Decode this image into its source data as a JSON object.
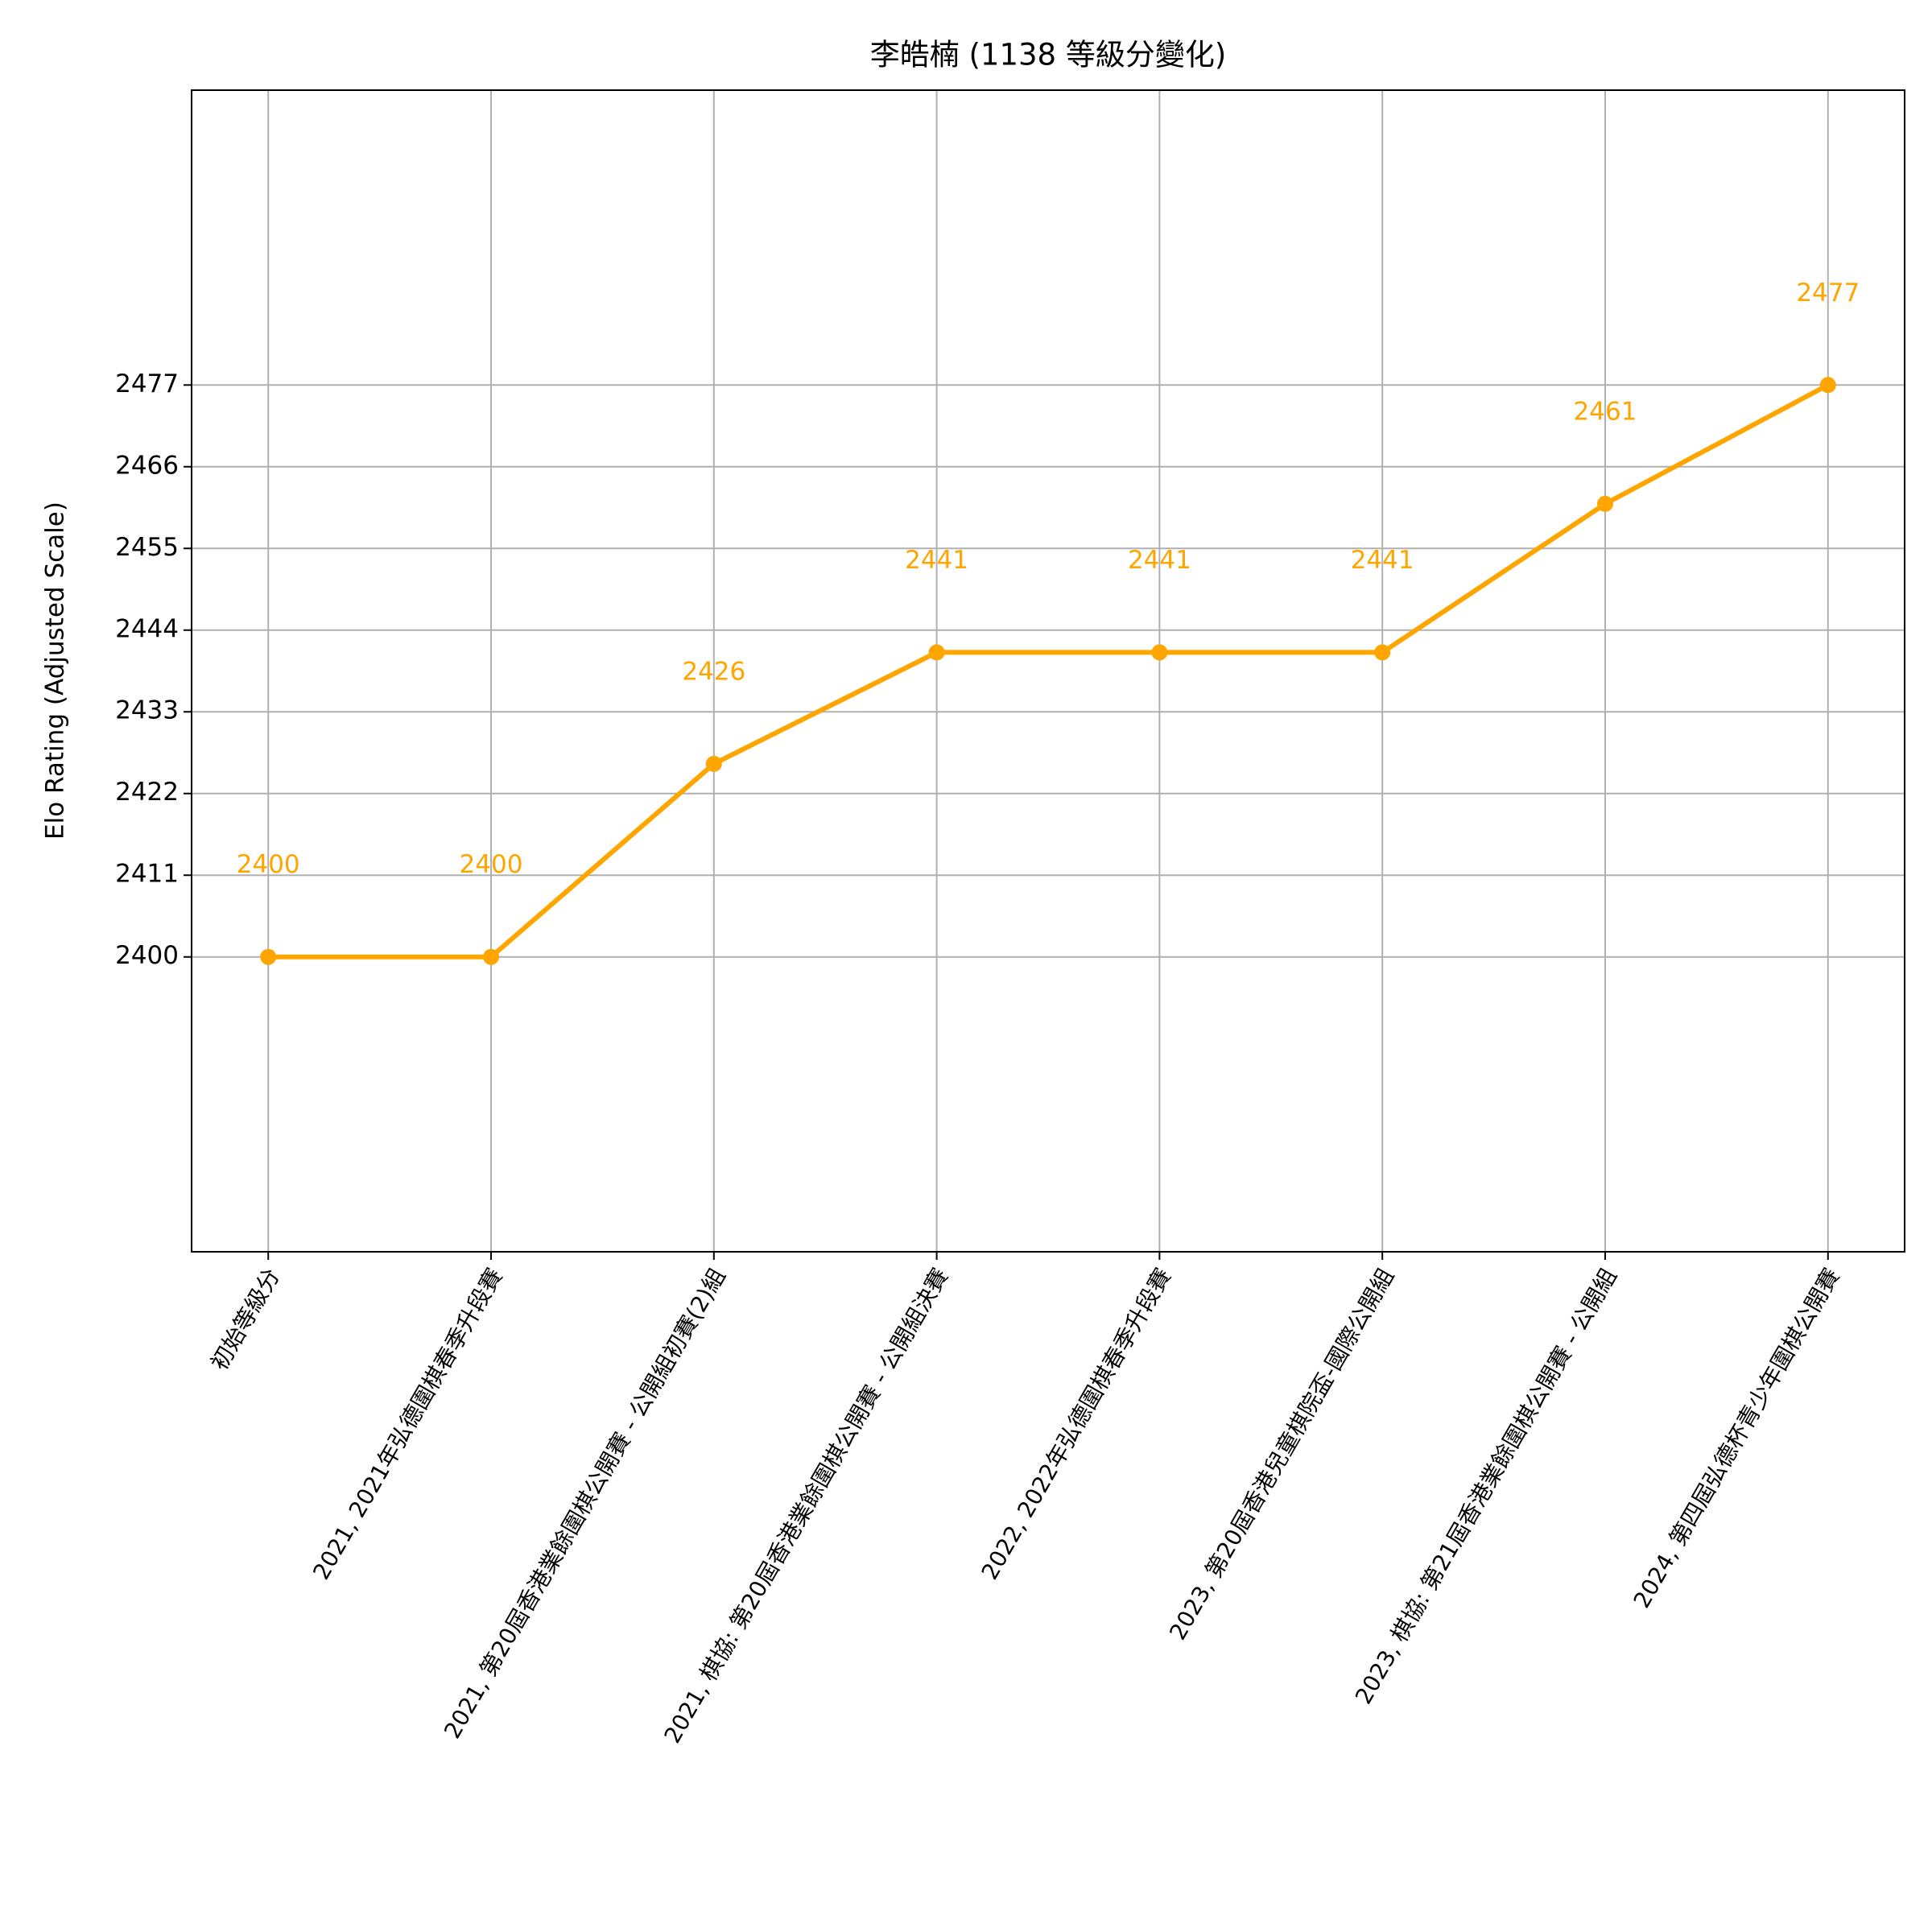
{
  "chart_data": {
    "type": "line",
    "title": "李皓楠 (1138 等級分變化)",
    "y_label": "Elo Rating (Adjusted Scale)",
    "categories": [
      "初始等級分",
      "2021, 2021年弘德圍棋春季升段賽",
      "2021, 第20屆香港業餘圍棋公開賽 - 公開組初賽(2)組",
      "2021, 棋協: 第20屆香港業餘圍棋公開賽 - 公開組決賽",
      "2022, 2022年弘德圍棋春季升段賽",
      "2023, 第20屆香港兒童棋院盃-國際公開組",
      "2023, 棋協: 第21屆香港業餘圍棋公開賽 - 公開組",
      "2024, 第四屆弘德杯青少年圍棋公開賽"
    ],
    "values": [
      2400,
      2400,
      2426,
      2441,
      2441,
      2441,
      2461,
      2477
    ],
    "color": "#ffa500",
    "ylim": [
      2360.3,
      2516.7
    ],
    "yticks": [
      2400,
      2411,
      2422,
      2433,
      2444,
      2455,
      2466,
      2477
    ],
    "grid": true
  }
}
